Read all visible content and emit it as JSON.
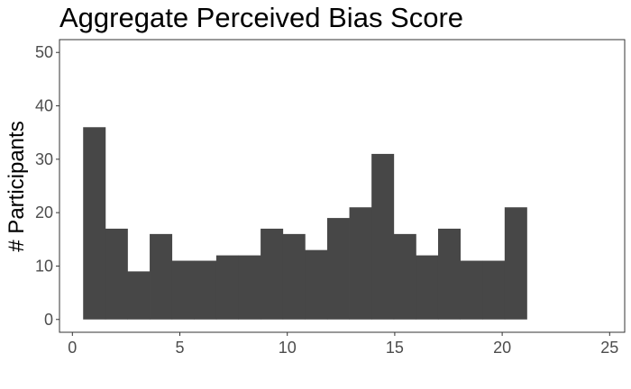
{
  "chart_data": {
    "type": "bar",
    "title": "Aggregate Perceived Bias Score",
    "xlabel": "",
    "ylabel": "# Participants",
    "bin_start": 0.5,
    "bin_width": 1.0323,
    "values": [
      36,
      17,
      9,
      16,
      11,
      11,
      12,
      12,
      17,
      16,
      13,
      19,
      21,
      31,
      16,
      12,
      17,
      11,
      11,
      21
    ],
    "xlim": [
      -0.6,
      25.7
    ],
    "ylim": [
      -2.4,
      52.4
    ],
    "x_ticks": [
      0,
      5,
      10,
      15,
      20,
      25
    ],
    "y_ticks": [
      0,
      10,
      20,
      30,
      40,
      50
    ],
    "grid": false,
    "bar_color": "#474747"
  }
}
